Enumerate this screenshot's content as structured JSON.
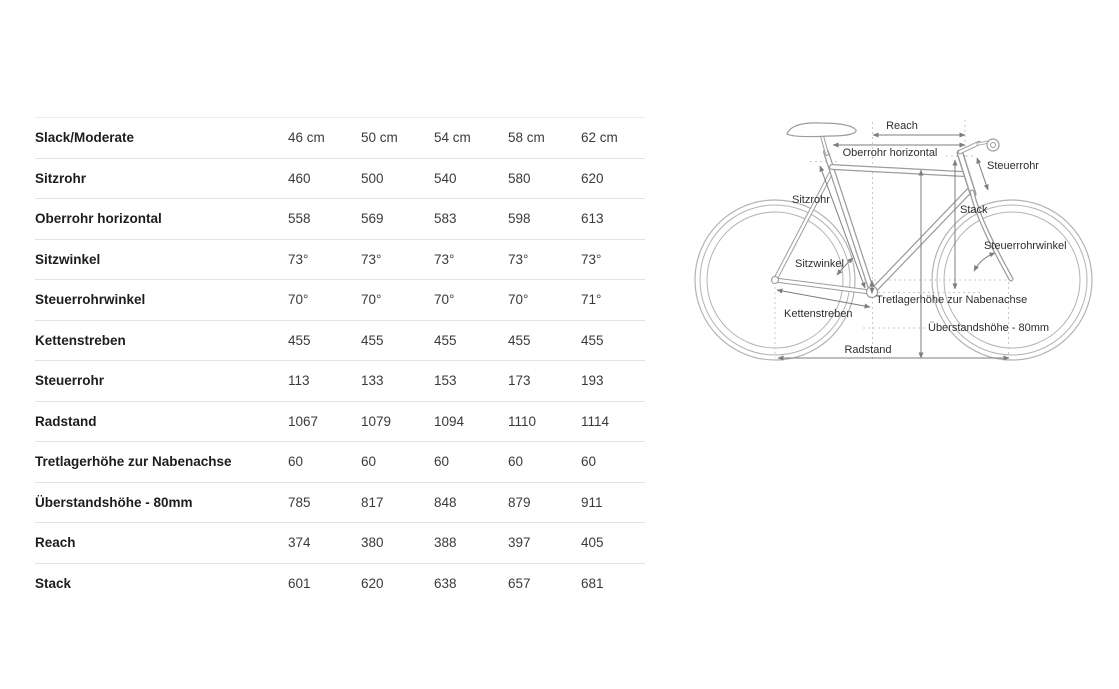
{
  "table": {
    "header": {
      "label": "Slack/Moderate",
      "columns": [
        "46 cm",
        "50 cm",
        "54 cm",
        "58 cm",
        "62 cm"
      ]
    },
    "rows": [
      {
        "label": "Sitzrohr",
        "values": [
          "460",
          "500",
          "540",
          "580",
          "620"
        ]
      },
      {
        "label": "Oberrohr horizontal",
        "values": [
          "558",
          "569",
          "583",
          "598",
          "613"
        ]
      },
      {
        "label": "Sitzwinkel",
        "values": [
          "73°",
          "73°",
          "73°",
          "73°",
          "73°"
        ]
      },
      {
        "label": "Steuerrohrwinkel",
        "values": [
          "70°",
          "70°",
          "70°",
          "70°",
          "71°"
        ]
      },
      {
        "label": "Kettenstreben",
        "values": [
          "455",
          "455",
          "455",
          "455",
          "455"
        ]
      },
      {
        "label": "Steuerrohr",
        "values": [
          "113",
          "133",
          "153",
          "173",
          "193"
        ]
      },
      {
        "label": "Radstand",
        "values": [
          "1067",
          "1079",
          "1094",
          "1110",
          "1114"
        ]
      },
      {
        "label": "Tretlagerhöhe zur Nabenachse",
        "values": [
          "60",
          "60",
          "60",
          "60",
          "60"
        ]
      },
      {
        "label": "Überstandshöhe - 80mm",
        "values": [
          "785",
          "817",
          "848",
          "879",
          "911"
        ]
      },
      {
        "label": "Reach",
        "values": [
          "374",
          "380",
          "388",
          "397",
          "405"
        ]
      },
      {
        "label": "Stack",
        "values": [
          "601",
          "620",
          "638",
          "657",
          "681"
        ]
      }
    ]
  },
  "diagram": {
    "labels": {
      "reach": "Reach",
      "oberrohr_horizontal": "Oberrohr horizontal",
      "steuerrohr": "Steuerrohr",
      "sitzrohr": "Sitzrohr",
      "stack": "Stack",
      "steuerrohrwinkel": "Steuerrohrwinkel",
      "sitzwinkel": "Sitzwinkel",
      "tretlagerhoehe": "Tretlagerhöhe zur Nabenachse",
      "kettenstreben": "Kettenstreben",
      "ueberstandshoehe": "Überstandshöhe - 80mm",
      "radstand": "Radstand"
    }
  },
  "colors": {
    "header_text": "#c9c9c9",
    "row_label_text": "#1d1d1d",
    "value_text": "#3a3a3a",
    "divider": "#e3e3e3",
    "bike_line": "#9c9c9c",
    "annotation_line": "#7d7d7d",
    "diagram_text": "#2e2e2e"
  }
}
